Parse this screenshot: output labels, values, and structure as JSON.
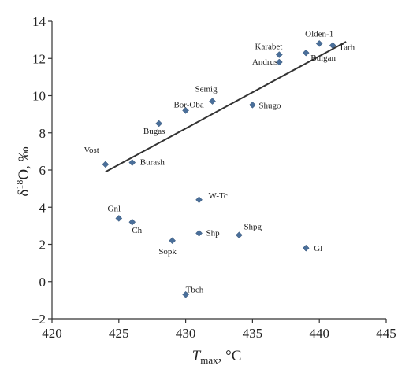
{
  "chart_data": {
    "type": "scatter",
    "title": "",
    "xlabel": {
      "main": "T",
      "sub": "max",
      "suffix": ", °C"
    },
    "ylabel": {
      "main": "δ",
      "sup": "18",
      "suffix": "O, ‰"
    },
    "xlim": [
      420,
      445
    ],
    "ylim": [
      -2,
      14
    ],
    "xticks": [
      420,
      425,
      430,
      435,
      440,
      445
    ],
    "yticks": [
      -2,
      0,
      2,
      4,
      6,
      8,
      10,
      12,
      14
    ],
    "grid": false,
    "legend": "none",
    "marker_color": "#4a6f9a",
    "line_color": "#333333",
    "points": [
      {
        "label": "Vost",
        "x": 424,
        "y": 6.3
      },
      {
        "label": "Burash",
        "x": 426,
        "y": 6.4
      },
      {
        "label": "Bugas",
        "x": 428,
        "y": 8.5
      },
      {
        "label": "Bor-Oba",
        "x": 430,
        "y": 9.2
      },
      {
        "label": "Semig",
        "x": 432,
        "y": 9.7
      },
      {
        "label": "Shugo",
        "x": 435,
        "y": 9.5
      },
      {
        "label": "Karabet",
        "x": 437,
        "y": 12.2
      },
      {
        "label": "Andrus",
        "x": 437,
        "y": 11.8
      },
      {
        "label": "Bulgan",
        "x": 439,
        "y": 12.3
      },
      {
        "label": "Olden-1",
        "x": 440,
        "y": 12.8
      },
      {
        "label": "Tarh",
        "x": 441,
        "y": 12.7
      },
      {
        "label": "W-Tc",
        "x": 431,
        "y": 4.4
      },
      {
        "label": "Gnl",
        "x": 425,
        "y": 3.4
      },
      {
        "label": "Ch",
        "x": 426,
        "y": 3.2
      },
      {
        "label": "Sopk",
        "x": 429,
        "y": 2.2
      },
      {
        "label": "Shp",
        "x": 431,
        "y": 2.6
      },
      {
        "label": "Shpg",
        "x": 434,
        "y": 2.5
      },
      {
        "label": "Gl",
        "x": 439,
        "y": 1.8
      },
      {
        "label": "Tbch",
        "x": 430,
        "y": -0.7
      }
    ],
    "trendline": {
      "x": [
        424,
        442
      ],
      "y": [
        5.9,
        12.9
      ]
    }
  }
}
